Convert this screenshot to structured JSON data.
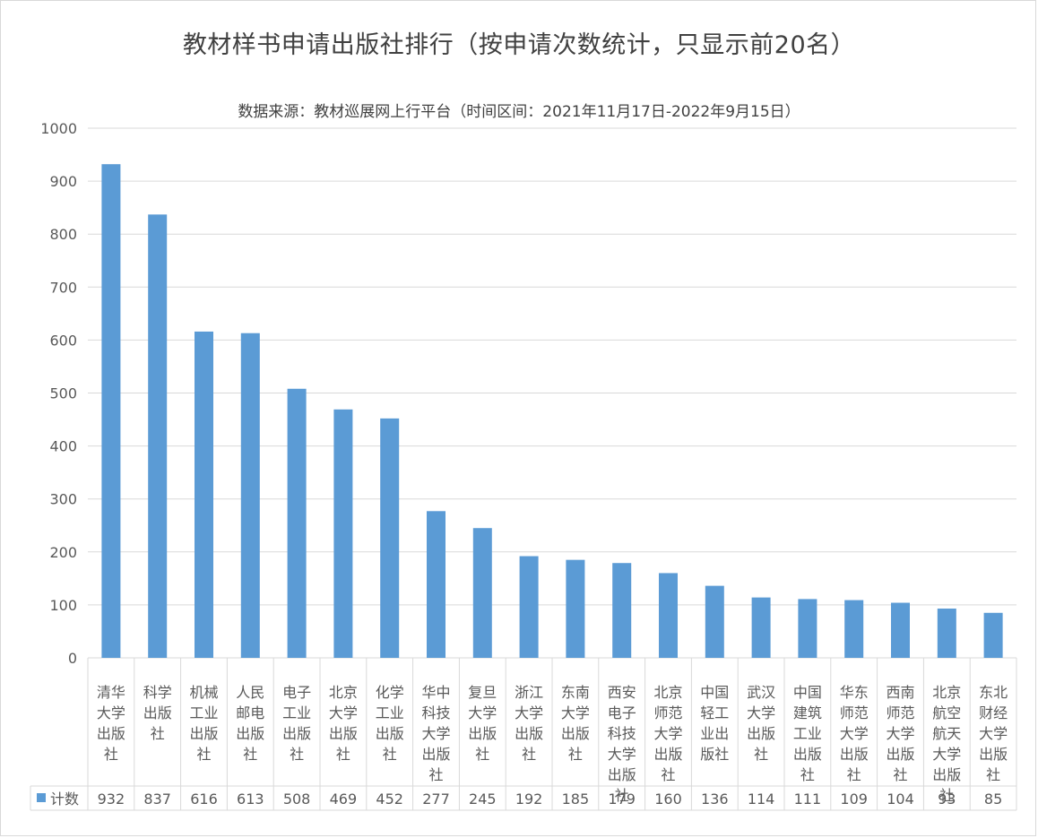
{
  "chart_data": {
    "type": "bar",
    "title": "教材样书申请出版社排行（按申请次数统计，只显示前20名）",
    "subtitle": "数据来源：教材巡展网上行平台（时间区间：2021年11月17日-2022年9月15日）",
    "categories": [
      "清华大学出版社",
      "科学出版社",
      "机械工业出版社",
      "人民邮电出版社",
      "电子工业出版社",
      "北京大学出版社",
      "化学工业出版社",
      "华中科技大学出版社",
      "复旦大学出版社",
      "浙江大学出版社",
      "东南大学出版社",
      "西安电子科技大学出版社",
      "北京师范大学出版社",
      "中国轻工业出版社",
      "武汉大学出版社",
      "中国建筑工业出版社",
      "华东师范大学出版社",
      "西南师范大学出版社",
      "北京航空航天大学出版社",
      "东北财经大学出版社"
    ],
    "category_lines": [
      [
        "清华",
        "大学",
        "出版",
        "社"
      ],
      [
        "科学",
        "出版",
        "社"
      ],
      [
        "机械",
        "工业",
        "出版",
        "社"
      ],
      [
        "人民",
        "邮电",
        "出版",
        "社"
      ],
      [
        "电子",
        "工业",
        "出版",
        "社"
      ],
      [
        "北京",
        "大学",
        "出版",
        "社"
      ],
      [
        "化学",
        "工业",
        "出版",
        "社"
      ],
      [
        "华中",
        "科技",
        "大学",
        "出版",
        "社"
      ],
      [
        "复旦",
        "大学",
        "出版",
        "社"
      ],
      [
        "浙江",
        "大学",
        "出版",
        "社"
      ],
      [
        "东南",
        "大学",
        "出版",
        "社"
      ],
      [
        "西安",
        "电子",
        "科技",
        "大学",
        "出版",
        "社"
      ],
      [
        "北京",
        "师范",
        "大学",
        "出版",
        "社"
      ],
      [
        "中国",
        "轻工",
        "业出",
        "版社"
      ],
      [
        "武汉",
        "大学",
        "出版",
        "社"
      ],
      [
        "中国",
        "建筑",
        "工业",
        "出版",
        "社"
      ],
      [
        "华东",
        "师范",
        "大学",
        "出版",
        "社"
      ],
      [
        "西南",
        "师范",
        "大学",
        "出版",
        "社"
      ],
      [
        "北京",
        "航空",
        "航天",
        "大学",
        "出版",
        "社"
      ],
      [
        "东北",
        "财经",
        "大学",
        "出版",
        "社"
      ]
    ],
    "series": [
      {
        "name": "计数",
        "values": [
          932,
          837,
          616,
          613,
          508,
          469,
          452,
          277,
          245,
          192,
          185,
          179,
          160,
          136,
          114,
          111,
          109,
          104,
          93,
          85
        ]
      }
    ],
    "ylim": [
      0,
      1000
    ],
    "yticks": [
      0,
      100,
      200,
      300,
      400,
      500,
      600,
      700,
      800,
      900,
      1000
    ],
    "grid": true,
    "legend": "data-table",
    "colors": {
      "bar": "#5b9bd5",
      "grid": "#d9d9d9",
      "text": "#595959"
    }
  }
}
